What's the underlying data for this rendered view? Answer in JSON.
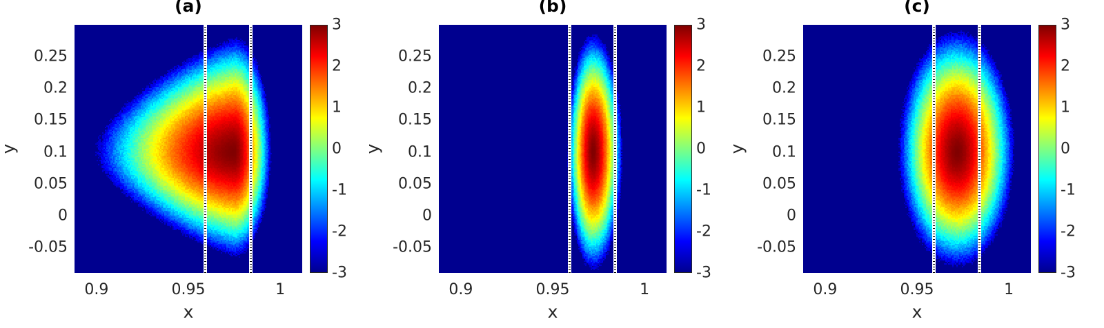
{
  "chart_data": [
    {
      "type": "heatmap",
      "title": "(a)",
      "xlabel": "x",
      "ylabel": "y",
      "xlim": [
        0.888,
        1.012
      ],
      "ylim": [
        -0.09,
        0.3
      ],
      "xticks": [
        "0.9",
        "0.95",
        "1"
      ],
      "xtick_values": [
        0.9,
        0.95,
        1.0
      ],
      "yticks": [
        "0.25",
        "0.2",
        "0.15",
        "0.1",
        "0.05",
        "0",
        "-0.05"
      ],
      "ytick_values": [
        0.25,
        0.2,
        0.15,
        0.1,
        0.05,
        0,
        -0.05
      ],
      "colorbar": {
        "min": -3,
        "max": 3,
        "ticks": [
          "3",
          "2",
          "1",
          "0",
          "-1",
          "-2",
          "-3"
        ],
        "tick_values": [
          3,
          2,
          1,
          0,
          -1,
          -2,
          -3
        ],
        "colormap": "jet"
      },
      "vertical_lines_x": [
        0.959,
        0.984
      ],
      "distribution": {
        "peak_x": 0.975,
        "peak_y": 0.1,
        "peak_value": 3.0,
        "x_extent_low": 0.9,
        "x_extent_high": 0.995,
        "y_extent_low": -0.065,
        "y_extent_high": 0.28,
        "shape": "asymmetric, long tail toward low x"
      }
    },
    {
      "type": "heatmap",
      "title": "(b)",
      "xlabel": "x",
      "ylabel": "y",
      "xlim": [
        0.888,
        1.012
      ],
      "ylim": [
        -0.09,
        0.3
      ],
      "xticks": [
        "0.9",
        "0.95",
        "1"
      ],
      "xtick_values": [
        0.9,
        0.95,
        1.0
      ],
      "yticks": [
        "0.25",
        "0.2",
        "0.15",
        "0.1",
        "0.05",
        "0",
        "-0.05"
      ],
      "ytick_values": [
        0.25,
        0.2,
        0.15,
        0.1,
        0.05,
        0,
        -0.05
      ],
      "colorbar": {
        "min": -3,
        "max": 3,
        "ticks": [
          "3",
          "2",
          "1",
          "0",
          "-1",
          "-2",
          "-3"
        ],
        "tick_values": [
          3,
          2,
          1,
          0,
          -1,
          -2,
          -3
        ],
        "colormap": "jet"
      },
      "vertical_lines_x": [
        0.959,
        0.984
      ],
      "distribution": {
        "peak_x": 0.972,
        "peak_y": 0.1,
        "peak_value": 3.0,
        "x_extent_low": 0.958,
        "x_extent_high": 0.988,
        "y_extent_low": -0.085,
        "y_extent_high": 0.285,
        "shape": "narrow vertical ellipse"
      }
    },
    {
      "type": "heatmap",
      "title": "(c)",
      "xlabel": "x",
      "ylabel": "y",
      "xlim": [
        0.888,
        1.012
      ],
      "ylim": [
        -0.09,
        0.3
      ],
      "xticks": [
        "0.9",
        "0.95",
        "1"
      ],
      "xtick_values": [
        0.9,
        0.95,
        1.0
      ],
      "yticks": [
        "0.25",
        "0.2",
        "0.15",
        "0.1",
        "0.05",
        "0",
        "-0.05"
      ],
      "ytick_values": [
        0.25,
        0.2,
        0.15,
        0.1,
        0.05,
        0,
        -0.05
      ],
      "colorbar": {
        "min": -3,
        "max": 3,
        "ticks": [
          "3",
          "2",
          "1",
          "0",
          "-1",
          "-2",
          "-3"
        ],
        "tick_values": [
          3,
          2,
          1,
          0,
          -1,
          -2,
          -3
        ],
        "colormap": "jet"
      },
      "vertical_lines_x": [
        0.959,
        0.984
      ],
      "distribution": {
        "peak_x": 0.972,
        "peak_y": 0.1,
        "peak_value": 3.0,
        "x_extent_low": 0.94,
        "x_extent_high": 1.003,
        "y_extent_low": -0.08,
        "y_extent_high": 0.29,
        "shape": "broad ellipse"
      }
    }
  ]
}
